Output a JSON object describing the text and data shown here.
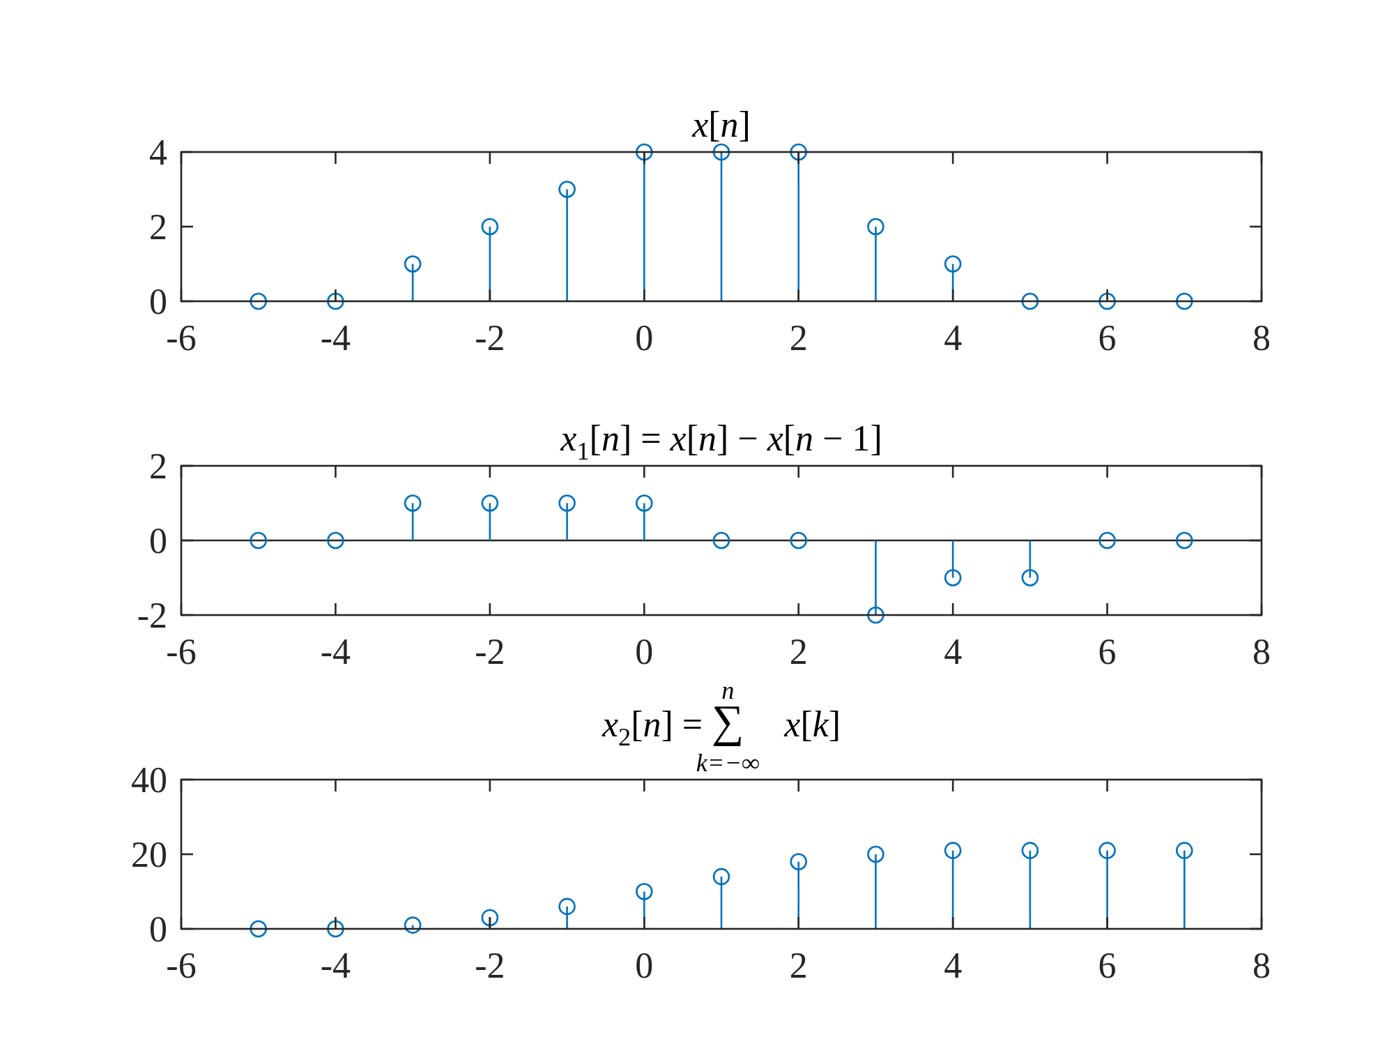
{
  "chart_data": [
    {
      "type": "lollipop",
      "title": "x[n]",
      "x": [
        -5,
        -4,
        -3,
        -2,
        -1,
        0,
        1,
        2,
        3,
        4,
        5,
        6,
        7
      ],
      "values": [
        0,
        0,
        1,
        2,
        3,
        4,
        4,
        4,
        2,
        1,
        0,
        0,
        0
      ],
      "color": "#0072bd",
      "marker": "circle",
      "xlim": [
        -6,
        8
      ],
      "xticks": [
        -6,
        -4,
        -2,
        0,
        2,
        4,
        6,
        8
      ],
      "ylim": [
        0,
        4
      ],
      "yticks": [
        0,
        2,
        4
      ]
    },
    {
      "type": "lollipop",
      "title": "x$_{1}$[n] = x[n] − x[n − 1]",
      "x": [
        -5,
        -4,
        -3,
        -2,
        -1,
        0,
        1,
        2,
        3,
        4,
        5,
        6,
        7
      ],
      "values": [
        0,
        0,
        1,
        1,
        1,
        1,
        0,
        0,
        -2,
        -1,
        -1,
        0,
        0
      ],
      "color": "#0072bd",
      "marker": "circle",
      "xlim": [
        -6,
        8
      ],
      "xticks": [
        -6,
        -4,
        -2,
        0,
        2,
        4,
        6,
        8
      ],
      "ylim": [
        -2,
        2
      ],
      "yticks": [
        -2,
        0,
        2
      ],
      "ref_lines": [
        {
          "axis": "y",
          "value": 0,
          "color": "#262626"
        }
      ]
    },
    {
      "type": "lollipop",
      "title": "x$_{2}$[n] = ∑$^{n}$$_{k=−∞}$ x[k]",
      "x": [
        -5,
        -4,
        -3,
        -2,
        -1,
        0,
        1,
        2,
        3,
        4,
        5,
        6,
        7
      ],
      "values": [
        0,
        0,
        1,
        3,
        6,
        10,
        14,
        18,
        20,
        21,
        21,
        21,
        21
      ],
      "color": "#0072bd",
      "marker": "circle",
      "xlim": [
        -6,
        8
      ],
      "xticks": [
        -6,
        -4,
        -2,
        0,
        2,
        4,
        6,
        8
      ],
      "ylim": [
        0,
        40
      ],
      "yticks": [
        0,
        20,
        40
      ]
    }
  ]
}
